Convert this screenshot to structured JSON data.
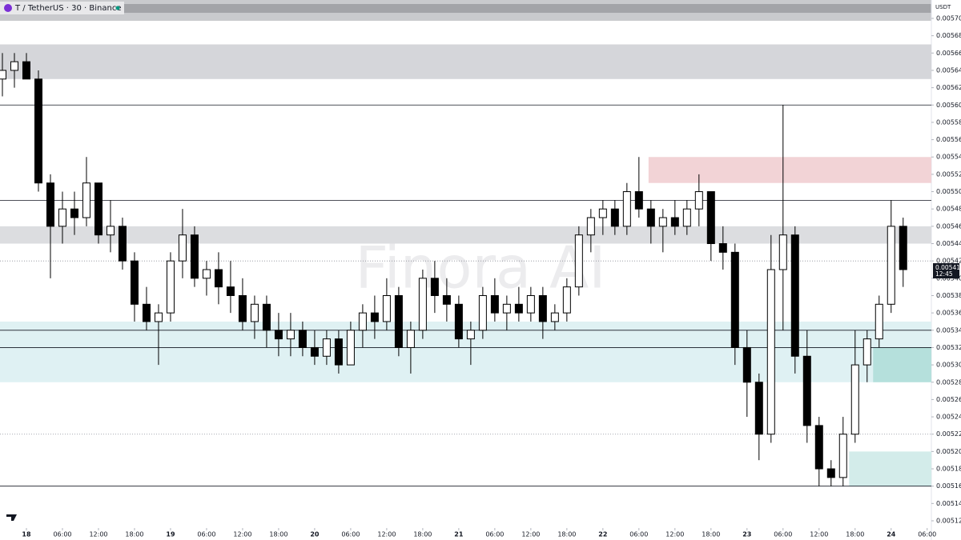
{
  "chart_data": {
    "type": "candlestick",
    "title": "T / TetherUS · 30 · Binance",
    "currency": "USDT",
    "watermark": "Finora AI",
    "x": [
      -4,
      -2,
      0,
      2,
      4,
      6,
      8,
      10,
      12,
      14,
      16,
      18,
      20,
      22,
      24,
      26,
      28,
      30,
      32,
      34,
      36,
      38,
      40,
      42,
      44,
      46,
      48,
      50,
      52,
      54,
      56,
      58,
      60,
      62,
      64,
      66,
      68,
      70,
      72,
      74,
      76,
      78,
      80,
      82,
      84,
      86,
      88,
      90,
      92,
      94,
      96,
      98,
      100,
      102,
      104,
      106,
      108,
      110,
      112,
      114,
      116,
      118,
      120,
      122,
      124,
      126,
      128,
      130,
      132,
      134,
      136,
      138,
      140,
      142,
      144,
      146
    ],
    "open": [
      0.00563,
      0.00564,
      0.00565,
      0.00563,
      0.00551,
      0.00546,
      0.00548,
      0.00547,
      0.00551,
      0.00545,
      0.00546,
      0.00542,
      0.00537,
      0.00535,
      0.00536,
      0.00542,
      0.00545,
      0.0054,
      0.00541,
      0.00539,
      0.00538,
      0.00535,
      0.00537,
      0.00534,
      0.00533,
      0.00534,
      0.00532,
      0.00531,
      0.00533,
      0.0053,
      0.00534,
      0.00536,
      0.00535,
      0.00538,
      0.00532,
      0.00534,
      0.0054,
      0.00538,
      0.00537,
      0.00533,
      0.00534,
      0.00538,
      0.00536,
      0.00537,
      0.00536,
      0.00538,
      0.00535,
      0.00536,
      0.00539,
      0.00545,
      0.00547,
      0.00548,
      0.00546,
      0.0055,
      0.00548,
      0.00546,
      0.00547,
      0.00546,
      0.00548,
      0.0055,
      0.00544,
      0.00543,
      0.00532,
      0.00528,
      0.00522,
      0.00541,
      0.00545,
      0.00531,
      0.00523,
      0.00518,
      0.00517,
      0.00522,
      0.0053,
      0.00533,
      0.00537,
      0.00546
    ],
    "high": [
      0.00566,
      0.00566,
      0.00566,
      0.00564,
      0.00552,
      0.0055,
      0.0055,
      0.00554,
      0.00551,
      0.00549,
      0.00547,
      0.00543,
      0.00539,
      0.00537,
      0.00543,
      0.00548,
      0.00546,
      0.00542,
      0.00543,
      0.00542,
      0.0054,
      0.00538,
      0.00538,
      0.00536,
      0.00536,
      0.00535,
      0.00534,
      0.00534,
      0.00534,
      0.00535,
      0.00537,
      0.00538,
      0.0054,
      0.00539,
      0.00535,
      0.00541,
      0.00542,
      0.0054,
      0.00538,
      0.00535,
      0.00539,
      0.0054,
      0.00538,
      0.00539,
      0.00539,
      0.00539,
      0.00537,
      0.0054,
      0.00546,
      0.00548,
      0.00549,
      0.00549,
      0.00551,
      0.00554,
      0.00549,
      0.00548,
      0.00549,
      0.00549,
      0.00552,
      0.0055,
      0.00546,
      0.00544,
      0.00534,
      0.00529,
      0.00545,
      0.0056,
      0.00546,
      0.00534,
      0.00524,
      0.00519,
      0.00524,
      0.00534,
      0.00534,
      0.00538,
      0.00549,
      0.00547
    ],
    "low": [
      0.00561,
      0.00562,
      0.00563,
      0.0055,
      0.0054,
      0.00544,
      0.00545,
      0.00546,
      0.00544,
      0.00543,
      0.00541,
      0.00535,
      0.00534,
      0.0053,
      0.00535,
      0.0054,
      0.00539,
      0.00538,
      0.00537,
      0.00536,
      0.00534,
      0.00533,
      0.00532,
      0.00531,
      0.00531,
      0.00531,
      0.0053,
      0.0053,
      0.00529,
      0.0053,
      0.00532,
      0.00533,
      0.00534,
      0.00531,
      0.00529,
      0.00533,
      0.00536,
      0.00535,
      0.00532,
      0.0053,
      0.00533,
      0.00535,
      0.00534,
      0.00535,
      0.00535,
      0.00533,
      0.00534,
      0.00535,
      0.00538,
      0.00543,
      0.00545,
      0.00545,
      0.00545,
      0.00547,
      0.00544,
      0.00543,
      0.00545,
      0.00545,
      0.00546,
      0.00542,
      0.00541,
      0.0053,
      0.00524,
      0.00519,
      0.00521,
      0.00534,
      0.00529,
      0.00521,
      0.00516,
      0.00516,
      0.00516,
      0.00521,
      0.00528,
      0.00532,
      0.00536,
      0.00539
    ],
    "close": [
      0.00564,
      0.00565,
      0.00563,
      0.00551,
      0.00546,
      0.00548,
      0.00547,
      0.00551,
      0.00545,
      0.00546,
      0.00542,
      0.00537,
      0.00535,
      0.00536,
      0.00542,
      0.00545,
      0.0054,
      0.00541,
      0.00539,
      0.00538,
      0.00535,
      0.00537,
      0.00534,
      0.00533,
      0.00534,
      0.00532,
      0.00531,
      0.00533,
      0.0053,
      0.00534,
      0.00536,
      0.00535,
      0.00538,
      0.00532,
      0.00534,
      0.0054,
      0.00538,
      0.00537,
      0.00533,
      0.00534,
      0.00538,
      0.00536,
      0.00537,
      0.00536,
      0.00538,
      0.00535,
      0.00536,
      0.00539,
      0.00545,
      0.00547,
      0.00548,
      0.00546,
      0.0055,
      0.00548,
      0.00546,
      0.00547,
      0.00546,
      0.00548,
      0.0055,
      0.00544,
      0.00543,
      0.00532,
      0.00528,
      0.00522,
      0.00541,
      0.00545,
      0.00531,
      0.00523,
      0.00518,
      0.00517,
      0.00522,
      0.0053,
      0.00533,
      0.00537,
      0.00546,
      0.00541
    ],
    "up_color": "#ffffff",
    "down_color": "#000000",
    "line_color": "#000000",
    "xlim": [
      -4.4,
      150.7
    ],
    "xticks": [
      {
        "value": 0,
        "label": "18"
      },
      {
        "value": 6,
        "label": "06:00"
      },
      {
        "value": 12,
        "label": "12:00"
      },
      {
        "value": 18,
        "label": "18:00"
      },
      {
        "value": 24,
        "label": "19"
      },
      {
        "value": 30,
        "label": "06:00"
      },
      {
        "value": 36,
        "label": "12:00"
      },
      {
        "value": 42,
        "label": "18:00"
      },
      {
        "value": 48,
        "label": "20"
      },
      {
        "value": 54,
        "label": "06:00"
      },
      {
        "value": 60,
        "label": "12:00"
      },
      {
        "value": 66,
        "label": "18:00"
      },
      {
        "value": 72,
        "label": "21"
      },
      {
        "value": 78,
        "label": "06:00"
      },
      {
        "value": 84,
        "label": "12:00"
      },
      {
        "value": 90,
        "label": "18:00"
      },
      {
        "value": 96,
        "label": "22"
      },
      {
        "value": 102,
        "label": "06:00"
      },
      {
        "value": 108,
        "label": "12:00"
      },
      {
        "value": 114,
        "label": "18:00"
      },
      {
        "value": 120,
        "label": "23"
      },
      {
        "value": 126,
        "label": "06:00"
      },
      {
        "value": 132,
        "label": "12:00"
      },
      {
        "value": 138,
        "label": "18:00"
      },
      {
        "value": 144,
        "label": "24"
      },
      {
        "value": 150,
        "label": "06:00"
      }
    ],
    "ylim": [
      0.00512,
      0.0057
    ],
    "yticks": [
      {
        "value": 0.0057,
        "label": "0.00570"
      },
      {
        "value": 0.00568,
        "label": "0.00568"
      },
      {
        "value": 0.00566,
        "label": "0.00566"
      },
      {
        "value": 0.00564,
        "label": "0.00564"
      },
      {
        "value": 0.00562,
        "label": "0.00562"
      },
      {
        "value": 0.0056,
        "label": "0.00560"
      },
      {
        "value": 0.00558,
        "label": "0.00558"
      },
      {
        "value": 0.00556,
        "label": "0.00556"
      },
      {
        "value": 0.00554,
        "label": "0.00554"
      },
      {
        "value": 0.00552,
        "label": "0.00552"
      },
      {
        "value": 0.0055,
        "label": "0.00550"
      },
      {
        "value": 0.00548,
        "label": "0.00548"
      },
      {
        "value": 0.00546,
        "label": "0.00546"
      },
      {
        "value": 0.00544,
        "label": "0.00544"
      },
      {
        "value": 0.00542,
        "label": "0.00542"
      },
      {
        "value": 0.0054,
        "label": "0.00540"
      },
      {
        "value": 0.00538,
        "label": "0.00538"
      },
      {
        "value": 0.00536,
        "label": "0.00536"
      },
      {
        "value": 0.00534,
        "label": "0.00534"
      },
      {
        "value": 0.00532,
        "label": "0.00532"
      },
      {
        "value": 0.0053,
        "label": "0.00530"
      },
      {
        "value": 0.00528,
        "label": "0.00528"
      },
      {
        "value": 0.00526,
        "label": "0.00526"
      },
      {
        "value": 0.00524,
        "label": "0.00524"
      },
      {
        "value": 0.00522,
        "label": "0.00522"
      },
      {
        "value": 0.0052,
        "label": "0.00520"
      },
      {
        "value": 0.00518,
        "label": "0.00518"
      },
      {
        "value": 0.00516,
        "label": "0.00516"
      },
      {
        "value": 0.00514,
        "label": "0.00514"
      },
      {
        "value": 0.00512,
        "label": "0.00512"
      }
    ],
    "zones": [
      {
        "from": -4.4,
        "lo": 0.00563,
        "hi": 0.00567,
        "color": "#d5d6da"
      },
      {
        "from": -4.4,
        "lo": 0.00544,
        "hi": 0.00546,
        "color": "#dcdde0"
      },
      {
        "from": 103.6,
        "lo": 0.00551,
        "hi": 0.00554,
        "color": "#f2d3d6"
      },
      {
        "from": -4.4,
        "lo": 0.00528,
        "hi": 0.00535,
        "color": "#dff1f3"
      },
      {
        "from": 141,
        "lo": 0.00528,
        "hi": 0.00532,
        "color": "#b5e0dc"
      },
      {
        "from": 137,
        "lo": 0.00516,
        "hi": 0.0052,
        "color": "#d3ecea"
      }
    ],
    "levels": [
      0.0056,
      0.00549,
      0.00534,
      0.00532,
      0.00516
    ],
    "dotted_levels": [
      0.00542,
      0.00522
    ],
    "last_price": {
      "value": 0.00541,
      "label": "0.00541"
    },
    "countdown": "12:45"
  }
}
